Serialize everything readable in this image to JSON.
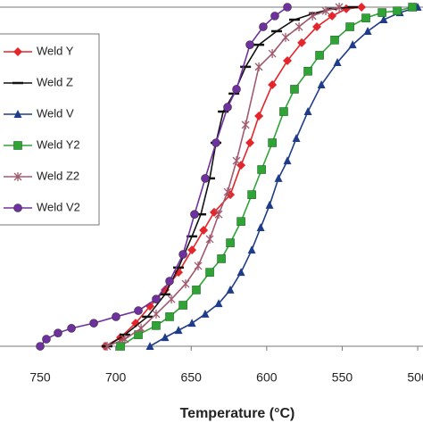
{
  "chart_data": {
    "type": "line",
    "xlabel": "Temperature (°C)",
    "xlim": [
      776.6,
      496.5
    ],
    "xticks": [
      750,
      700,
      650,
      600,
      550,
      500
    ],
    "ylim": [
      0,
      100
    ],
    "series": [
      {
        "name": "Weld Y",
        "color": "#e3262b",
        "marker": "diamond",
        "x": [
          706.9,
          696.8,
          686.8,
          677.3,
          667.3,
          658.4,
          649.5,
          641.8,
          634.8,
          624.1,
          617,
          611.1,
          605.2,
          596.3,
          586.3,
          576.8,
          566.8,
          556.7,
          547.3,
          537.2
        ],
        "values": [
          0,
          2.6,
          6.8,
          11.8,
          16.6,
          21.8,
          28.4,
          34.2,
          39.5,
          44.7,
          53.4,
          60,
          67.9,
          77.1,
          84.2,
          89.5,
          94.2,
          97.4,
          99.5,
          100
        ]
      },
      {
        "name": "Weld Z",
        "color": "#111111",
        "marker": "dash",
        "x": [
          705.7,
          693.9,
          679,
          667.3,
          658.4,
          649.5,
          643.6,
          637.7,
          633.6,
          628.8,
          621.7,
          614,
          605.2,
          593.4,
          581.6,
          568.6,
          556.7,
          543
        ],
        "values": [
          0,
          3.4,
          8.7,
          15.3,
          23.2,
          32.4,
          38.9,
          49.5,
          60,
          69.2,
          74.5,
          82.4,
          88.9,
          92.9,
          96.3,
          98.2,
          99.5,
          100
        ]
      },
      {
        "name": "Weld V",
        "color": "#1f3c88",
        "marker": "triangle",
        "x": [
          677.3,
          667.3,
          658.4,
          649.5,
          640.7,
          631.8,
          624.1,
          617,
          609.9,
          604,
          598.1,
          592.2,
          586.3,
          580.4,
          572.7,
          563.8,
          553.2,
          543.1,
          533.1,
          522.5,
          511.8,
          500
        ],
        "values": [
          0,
          2.6,
          4.7,
          6.8,
          9.5,
          12.6,
          16.6,
          21.8,
          28.4,
          35,
          41.6,
          49.5,
          54.7,
          61.3,
          69.2,
          77.1,
          83.7,
          88.9,
          92.9,
          96.3,
          98.4,
          100
        ]
      },
      {
        "name": "Weld Y2",
        "color": "#2fa336",
        "marker": "square",
        "x": [
          696.8,
          685,
          673.2,
          664.3,
          655.4,
          646.6,
          637.7,
          630,
          624.1,
          617,
          609.9,
          603.4,
          596.3,
          588.7,
          581.6,
          572.7,
          565,
          555,
          544.9,
          534.3,
          523.6,
          513.6,
          503.5
        ],
        "values": [
          0,
          3.4,
          6.1,
          8.7,
          12.1,
          16.6,
          21.8,
          25.8,
          30.5,
          36.8,
          44.7,
          52.1,
          60,
          69.2,
          75.8,
          81.1,
          85.8,
          90.3,
          94.2,
          96.8,
          98.4,
          98.9,
          100
        ]
      },
      {
        "name": "Weld Z2",
        "color": "#a05a6e",
        "marker": "asterisk",
        "x": [
          705.7,
          693.9,
          683.2,
          673.2,
          663.1,
          653.7,
          645.4,
          637.7,
          631.8,
          625.9,
          620,
          614,
          605.2,
          596.3,
          587.5,
          578.6,
          569.7,
          560.9,
          552
        ],
        "values": [
          0,
          2.1,
          5.3,
          9.5,
          13.9,
          18.4,
          23.7,
          31.6,
          38.9,
          45.5,
          54.7,
          65.3,
          82.4,
          86.3,
          91.1,
          94.2,
          97.4,
          98.9,
          100
        ]
      },
      {
        "name": "Weld V2",
        "color": "#7030a0",
        "marker": "circle",
        "x": [
          750,
          745.9,
          738.2,
          729.3,
          714.5,
          699.8,
          685,
          673.2,
          664.3,
          655.4,
          647.8,
          640.7,
          633.6,
          625.9,
          620,
          611.1,
          602.3,
          594.6,
          586.3
        ],
        "values": [
          0,
          2.1,
          3.9,
          5.3,
          6.8,
          8.7,
          10.5,
          13.9,
          19.2,
          27.1,
          38.9,
          49.5,
          60,
          70.5,
          75.8,
          88.9,
          94.2,
          97.4,
          100
        ]
      }
    ]
  }
}
